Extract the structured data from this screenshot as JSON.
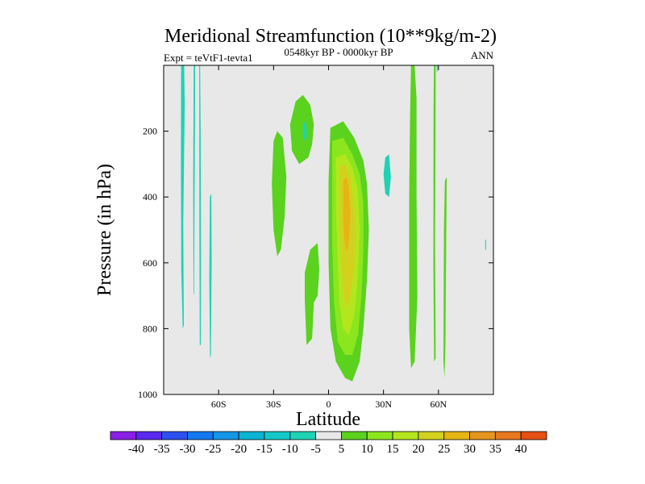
{
  "chart_data": {
    "type": "contour",
    "title": "Meridional Streamfunction (10**9kg/m-2)",
    "left_string": "Expt = teVtF1-tevta1",
    "center_string": "0548kyr BP - 0000kyr BP",
    "right_string": "ANN",
    "xlabel": "Latitude",
    "ylabel": "Pressure (in hPa)",
    "xlim": [
      -90,
      90
    ],
    "ylim": [
      1000,
      0
    ],
    "x_ticks": [
      {
        "value": -60,
        "label": "60S"
      },
      {
        "value": -30,
        "label": "30S"
      },
      {
        "value": 0,
        "label": "0"
      },
      {
        "value": 30,
        "label": "30N"
      },
      {
        "value": 60,
        "label": "60N"
      }
    ],
    "y_ticks": [
      {
        "value": 200,
        "label": "200"
      },
      {
        "value": 400,
        "label": "400"
      },
      {
        "value": 600,
        "label": "600"
      },
      {
        "value": 800,
        "label": "800"
      },
      {
        "value": 1000,
        "label": "1000"
      }
    ],
    "background_color": "#e8e8e8",
    "colorbar": {
      "boundaries": [
        "-40",
        "-35",
        "-30",
        "-25",
        "-20",
        "-15",
        "-10",
        "-5",
        "5",
        "10",
        "15",
        "20",
        "25",
        "30",
        "35",
        "40"
      ],
      "colors": [
        "#8a1ee6",
        "#5a28f0",
        "#2d50f0",
        "#1478f0",
        "#1496e6",
        "#0ab4d2",
        "#14c8c8",
        "#1ed2b4",
        "#e8e8e8",
        "#5ad21e",
        "#8ce61e",
        "#b4e61e",
        "#d2d21e",
        "#e6b414",
        "#e6961e",
        "#e6781e",
        "#e65014"
      ]
    },
    "fields": [
      {
        "name": "tongue-A",
        "color": "#1ed2b4",
        "points": [
          [
            -80.5,
            0
          ],
          [
            -78.8,
            0
          ],
          [
            -78.5,
            120
          ],
          [
            -79.3,
            480
          ],
          [
            -79,
            790
          ],
          [
            -79.6,
            800
          ],
          [
            -80.4,
            620
          ],
          [
            -80.6,
            300
          ]
        ]
      },
      {
        "name": "tongue-B",
        "color": "#1ed2b4",
        "points": [
          [
            -73.6,
            0
          ],
          [
            -72.8,
            0
          ],
          [
            -73,
            300
          ],
          [
            -73.4,
            700
          ],
          [
            -73.7,
            690
          ],
          [
            -73.9,
            350
          ]
        ]
      },
      {
        "name": "tongue-C",
        "color": "#1ed2b4",
        "points": [
          [
            -70.6,
            0
          ],
          [
            -70.1,
            0
          ],
          [
            -69.8,
            200
          ],
          [
            -69.6,
            600
          ],
          [
            -69.7,
            850
          ],
          [
            -70.3,
            850
          ],
          [
            -70.5,
            500
          ]
        ]
      },
      {
        "name": "tongue-D",
        "color": "#1ed2b4",
        "points": [
          [
            -64.8,
            400
          ],
          [
            -64,
            390
          ],
          [
            -63.8,
            600
          ],
          [
            -64.2,
            880
          ],
          [
            -64.7,
            890
          ],
          [
            -65.1,
            650
          ]
        ]
      },
      {
        "name": "green-patch-1",
        "color": "#5ad21e",
        "points": [
          [
            -30,
            230
          ],
          [
            -28,
            200
          ],
          [
            -25,
            220
          ],
          [
            -23,
            340
          ],
          [
            -24,
            460
          ],
          [
            -26,
            560
          ],
          [
            -28,
            580
          ],
          [
            -30,
            500
          ],
          [
            -31,
            360
          ]
        ]
      },
      {
        "name": "green-patch-2",
        "color": "#5ad21e",
        "points": [
          [
            -18,
            110
          ],
          [
            -14,
            90
          ],
          [
            -10,
            120
          ],
          [
            -8,
            180
          ],
          [
            -9,
            240
          ],
          [
            -11,
            280
          ],
          [
            -16,
            300
          ],
          [
            -20,
            260
          ],
          [
            -21,
            180
          ]
        ]
      },
      {
        "name": "cyan-patch-1",
        "color": "#1ed2b4",
        "points": [
          [
            -14,
            180
          ],
          [
            -13,
            170
          ],
          [
            -12,
            190
          ],
          [
            -12,
            220
          ],
          [
            -13,
            230
          ],
          [
            -14,
            215
          ]
        ]
      },
      {
        "name": "green-patch-3",
        "color": "#5ad21e",
        "points": [
          [
            -10,
            560
          ],
          [
            -6,
            540
          ],
          [
            -5,
            620
          ],
          [
            -6,
            700
          ],
          [
            -8,
            720
          ],
          [
            -9,
            830
          ],
          [
            -12,
            850
          ],
          [
            -13,
            710
          ],
          [
            -13,
            630
          ]
        ]
      },
      {
        "name": "cell-5",
        "color": "#5ad21e",
        "points": [
          [
            1,
            190
          ],
          [
            8,
            170
          ],
          [
            14,
            220
          ],
          [
            19,
            290
          ],
          [
            21,
            360
          ],
          [
            22,
            500
          ],
          [
            21,
            650
          ],
          [
            19,
            800
          ],
          [
            17,
            900
          ],
          [
            13,
            960
          ],
          [
            9,
            950
          ],
          [
            4,
            900
          ],
          [
            1,
            800
          ],
          [
            0,
            600
          ],
          [
            0,
            350
          ]
        ]
      },
      {
        "name": "cell-10",
        "color": "#8ce61e",
        "points": [
          [
            2,
            230
          ],
          [
            8,
            220
          ],
          [
            13,
            270
          ],
          [
            17,
            330
          ],
          [
            19,
            420
          ],
          [
            19,
            560
          ],
          [
            18,
            700
          ],
          [
            16,
            820
          ],
          [
            13,
            880
          ],
          [
            9,
            880
          ],
          [
            5,
            840
          ],
          [
            3,
            720
          ],
          [
            2,
            540
          ],
          [
            2,
            350
          ]
        ]
      },
      {
        "name": "cell-15",
        "color": "#b4e61e",
        "points": [
          [
            4,
            280
          ],
          [
            9,
            270
          ],
          [
            13,
            310
          ],
          [
            16,
            380
          ],
          [
            17,
            500
          ],
          [
            16,
            640
          ],
          [
            14,
            760
          ],
          [
            11,
            820
          ],
          [
            8,
            800
          ],
          [
            6,
            720
          ],
          [
            5,
            600
          ],
          [
            4,
            440
          ]
        ]
      },
      {
        "name": "cell-20",
        "color": "#d2d21e",
        "points": [
          [
            6,
            310
          ],
          [
            9,
            300
          ],
          [
            12,
            340
          ],
          [
            14,
            420
          ],
          [
            15,
            520
          ],
          [
            14,
            620
          ],
          [
            12,
            700
          ],
          [
            10,
            740
          ],
          [
            8,
            700
          ],
          [
            7,
            600
          ],
          [
            6,
            470
          ]
        ]
      },
      {
        "name": "cell-25",
        "color": "#e6b414",
        "points": [
          [
            8,
            350
          ],
          [
            10,
            340
          ],
          [
            11,
            370
          ],
          [
            12,
            450
          ],
          [
            11,
            540
          ],
          [
            10,
            570
          ],
          [
            9,
            550
          ],
          [
            8,
            480
          ]
        ]
      },
      {
        "name": "green-patch-4",
        "color": "#5ad21e",
        "points": [
          [
            45,
            0
          ],
          [
            47,
            0
          ],
          [
            48,
            100
          ],
          [
            48,
            400
          ],
          [
            48.5,
            700
          ],
          [
            47,
            900
          ],
          [
            45,
            920
          ],
          [
            44,
            800
          ],
          [
            44,
            400
          ],
          [
            44.5,
            150
          ]
        ]
      },
      {
        "name": "cyan-patch-2",
        "color": "#1ed2b4",
        "points": [
          [
            31,
            280
          ],
          [
            33,
            270
          ],
          [
            34,
            340
          ],
          [
            33,
            400
          ],
          [
            31,
            390
          ],
          [
            30,
            330
          ]
        ]
      },
      {
        "name": "green-patch-5",
        "color": "#5ad21e",
        "points": [
          [
            57.5,
            0
          ],
          [
            58.5,
            0
          ],
          [
            58.4,
            200
          ],
          [
            58.2,
            550
          ],
          [
            58.5,
            890
          ],
          [
            57.6,
            900
          ],
          [
            57.2,
            600
          ],
          [
            57.3,
            150
          ]
        ]
      },
      {
        "name": "green-patch-6",
        "color": "#5ad21e",
        "points": [
          [
            63.5,
            350
          ],
          [
            64.5,
            340
          ],
          [
            64.2,
            550
          ],
          [
            63.8,
            850
          ],
          [
            63.3,
            950
          ],
          [
            62.7,
            900
          ],
          [
            63,
            500
          ]
        ]
      },
      {
        "name": "cyan-patch-3",
        "color": "#1ed2b4",
        "points": [
          [
            59,
            0
          ],
          [
            59.6,
            0
          ],
          [
            59.4,
            20
          ],
          [
            59.1,
            20
          ]
        ]
      },
      {
        "name": "cyan-patch-4",
        "color": "#1ed2b4",
        "points": [
          [
            85.5,
            530
          ],
          [
            86,
            530
          ],
          [
            86,
            560
          ],
          [
            85.5,
            560
          ]
        ]
      }
    ]
  }
}
